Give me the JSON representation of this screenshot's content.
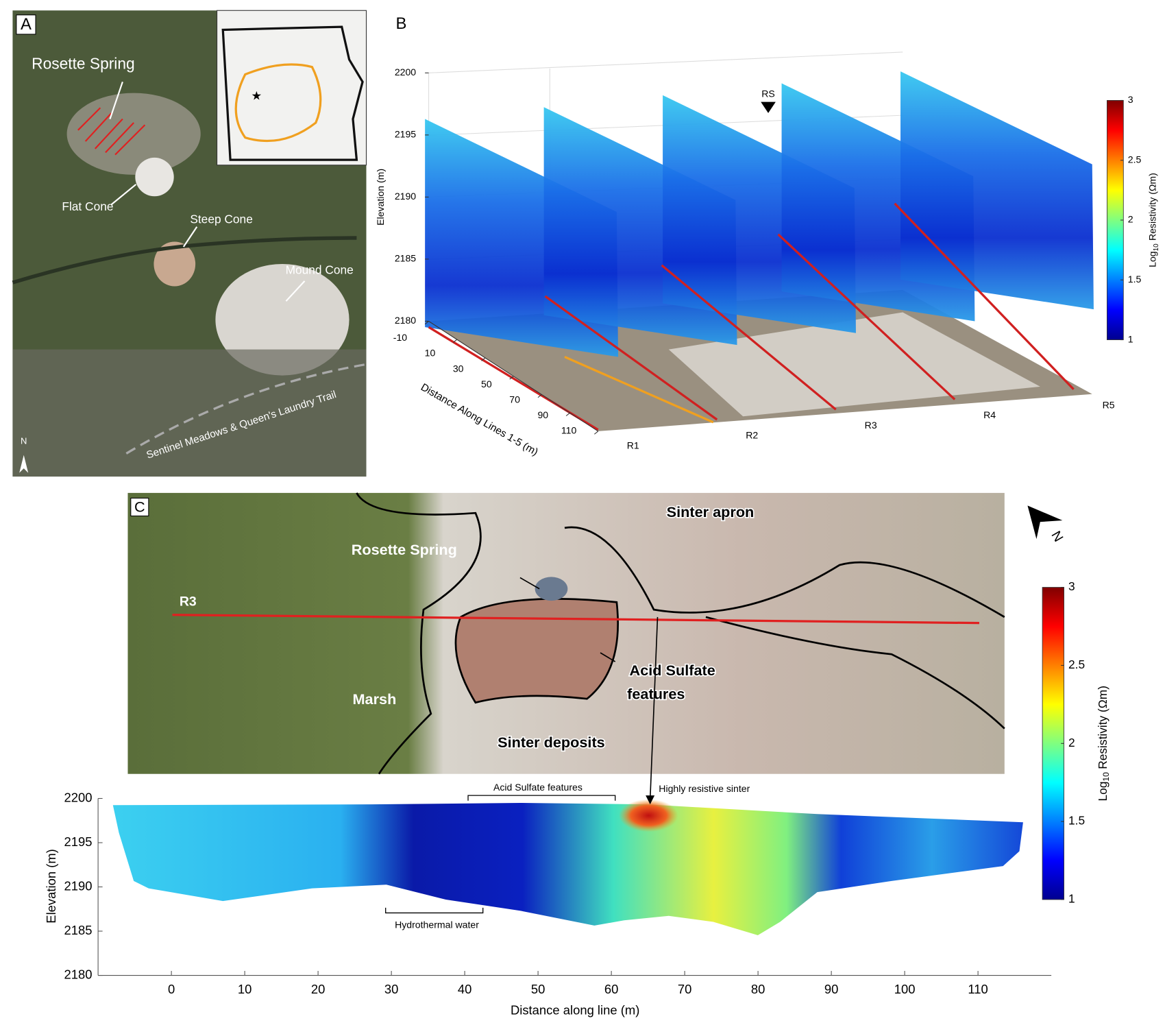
{
  "figure": {
    "panel_a": {
      "label": "A",
      "annotations": [
        "Rosette Spring",
        "Flat Cone",
        "Steep Cone",
        "Mound Cone",
        "Sentinel Meadows & Queen's Laundry Trail"
      ],
      "north": "N"
    },
    "panel_b": {
      "label": "B",
      "marker": "RS",
      "ylabel": "Elevation (m)",
      "zlim": [
        2180,
        2200
      ],
      "zticks": [
        2180,
        2185,
        2190,
        2195,
        2200
      ],
      "xlabel": "Distance Along Lines 1-5 (m)",
      "xlim": [
        -10,
        110
      ],
      "xticks": [
        -10,
        10,
        30,
        50,
        70,
        90,
        110
      ],
      "lines": [
        "R1",
        "R2",
        "R3",
        "R4",
        "R5"
      ],
      "colorbar": {
        "lim": [
          1,
          3
        ],
        "ticks": [
          1,
          1.5,
          2,
          2.5,
          3
        ],
        "colormap": "jet",
        "label": {
          "prefix": "Log",
          "subscript": "10",
          "suffix": "Resistivity (Ωm)"
        }
      }
    },
    "panel_c": {
      "label": "C",
      "north": "N",
      "map_labels": {
        "line": "R3",
        "spring": "Rosette Spring",
        "apron": "Sinter apron",
        "acid": [
          "Acid Sulfate",
          "features"
        ],
        "marsh": "Marsh",
        "deposits": "Sinter deposits"
      },
      "annotations": {
        "acid": "Acid Sulfate features",
        "sinter": "Highly resistive sinter",
        "water": "Hydrothermal water"
      },
      "xlim": [
        -10,
        120
      ],
      "xticks": [
        0,
        10,
        20,
        30,
        40,
        50,
        60,
        70,
        80,
        90,
        100,
        110
      ],
      "ylim": [
        2180,
        2200
      ],
      "yticks": [
        2180,
        2185,
        2190,
        2195,
        2200
      ],
      "xlabel": "Distance along line (m)",
      "ylabel": "Elevation (m)",
      "colorbar": {
        "lim": [
          1,
          3
        ],
        "ticks": [
          1,
          1.5,
          2,
          2.5,
          3
        ],
        "colormap": "jet",
        "label": {
          "prefix": "Log",
          "subscript": "10",
          "suffix": "Resistivity (Ωm)"
        }
      }
    }
  }
}
